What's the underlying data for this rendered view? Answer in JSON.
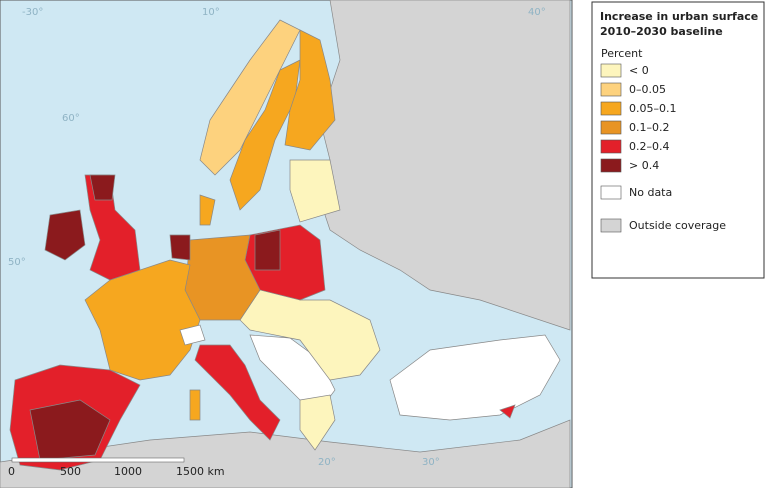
{
  "legend": {
    "title_lines": [
      "Increase in urban surface",
      "2010–2030 baseline"
    ],
    "subtitle": "Percent",
    "items": [
      {
        "label": "< 0",
        "color": "#fdf5bd"
      },
      {
        "label": "0–0.05",
        "color": "#fdd27e"
      },
      {
        "label": "0.05–0.1",
        "color": "#f6a71f"
      },
      {
        "label": "0.1–0.2",
        "color": "#e89424"
      },
      {
        "label": "0.2–0.4",
        "color": "#e3202a"
      },
      {
        "label": "> 0.4",
        "color": "#8b1a1d"
      }
    ],
    "no_data": {
      "label": "No data",
      "color": "#ffffff"
    },
    "outside": {
      "label": "Outside coverage",
      "color": "#d4d4d4"
    }
  },
  "scale_bar": {
    "labels": [
      "0",
      "500",
      "1000",
      "1500 km"
    ]
  },
  "graticule_labels": [
    "-30°",
    "10°",
    "60°",
    "50°",
    "20°",
    "30°",
    "40°"
  ]
}
